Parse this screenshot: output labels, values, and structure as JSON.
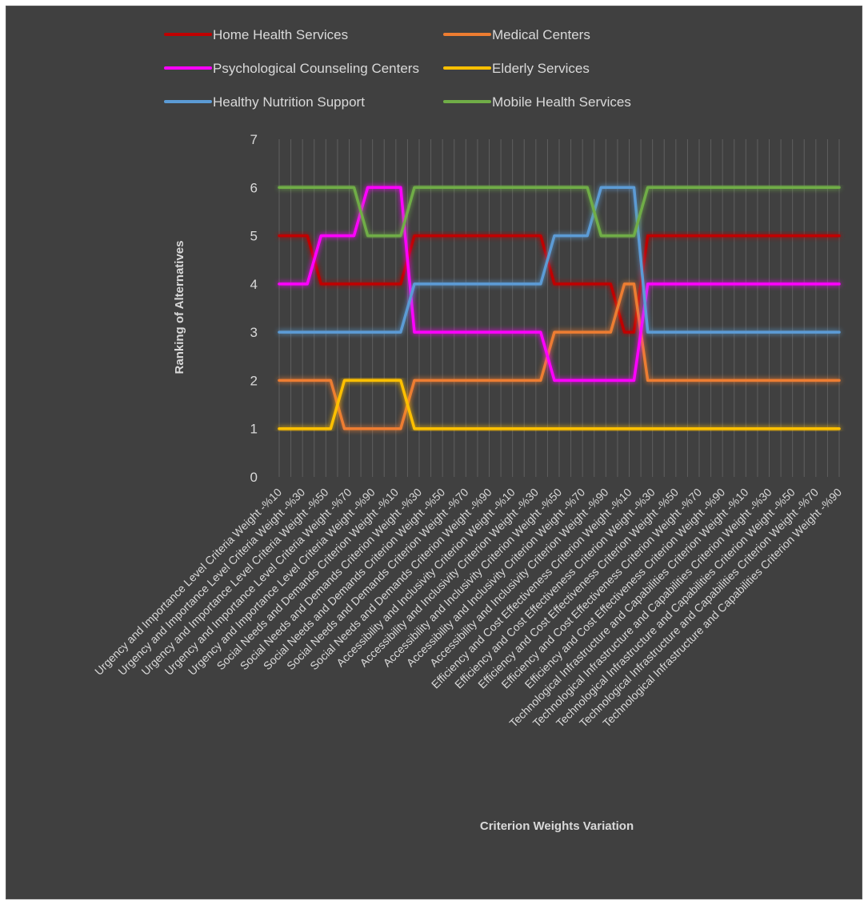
{
  "chart_data": {
    "type": "line",
    "title": "",
    "xlabel": "Criterion Weights Variation",
    "ylabel": "Ranking of Alternatives",
    "ylim": [
      0,
      7
    ],
    "yticks": [
      0,
      1,
      2,
      3,
      4,
      5,
      6,
      7
    ],
    "grid": "vertical",
    "legend": "top",
    "categories": [
      "Urgency and Importance Level Criteria Weight -%10",
      "Urgency and Importance Level Criteria Weight -%30",
      "Urgency and Importance Level Criteria Weight -%50",
      "Urgency and Importance Level Criteria Weight -%70",
      "Urgency and Importance Level Criteria Weight -%90",
      "Social Needs and Demands Criterion Weight -%10",
      "Social Needs and Demands Criterion Weight -%30",
      "Social Needs and Demands Criterion Weight -%50",
      "Social Needs and Demands Criterion Weight -%70",
      "Social Needs and Demands Criterion Weight -%90",
      "Accessibility and Inclusivity Criterion Weight -%10",
      "Accessibility and Inclusivity Criterion Weight -%30",
      "Accessibility and Inclusivity Criterion Weight -%50",
      "Accessibility and Inclusivity Criterion Weight -%70",
      "Accessibility and Inclusivity Criterion Weight -%90",
      "Efficiency and Cost Effectiveness Criterion Weight -%10",
      "Efficiency and Cost Effectiveness Criterion Weight -%30",
      "Efficiency and Cost Effectiveness Criterion Weight -%50",
      "Efficiency and Cost Effectiveness Criterion Weight -%70",
      "Efficiency and Cost Effectiveness Criterion Weight -%90",
      "Technological Infrastructure and Capabilities  Criterion Weight -%10",
      "Technological Infrastructure and Capabilities  Criterion Weight -%30",
      "Technological Infrastructure and Capabilities  Criterion Weight -%50",
      "Technological Infrastructure and Capabilities  Criterion Weight -%70",
      "Technological Infrastructure and Capabilities  Criterion Weight -%90"
    ],
    "series": [
      {
        "name": "Home Health Services",
        "color": "#c00000",
        "values": [
          5,
          5,
          4,
          4,
          4,
          4,
          5,
          5,
          5,
          5,
          5,
          5,
          4,
          4,
          4,
          3,
          5,
          5,
          5,
          5,
          5,
          5,
          5,
          5,
          5
        ]
      },
      {
        "name": "Medical Centers",
        "color": "#ed7d31",
        "values": [
          2,
          2,
          2,
          1,
          1,
          1,
          2,
          2,
          2,
          2,
          2,
          2,
          3,
          3,
          3,
          4,
          2,
          2,
          2,
          2,
          2,
          2,
          2,
          2,
          2
        ]
      },
      {
        "name": "Psychological Counseling Centers",
        "color": "#ff00ff",
        "values": [
          4,
          4,
          5,
          5,
          6,
          6,
          3,
          3,
          3,
          3,
          3,
          3,
          2,
          2,
          2,
          2,
          4,
          4,
          4,
          4,
          4,
          4,
          4,
          4,
          4
        ]
      },
      {
        "name": "Elderly Services",
        "color": "#ffc000",
        "values": [
          1,
          1,
          1,
          2,
          2,
          2,
          1,
          1,
          1,
          1,
          1,
          1,
          1,
          1,
          1,
          1,
          1,
          1,
          1,
          1,
          1,
          1,
          1,
          1,
          1
        ]
      },
      {
        "name": "Healthy Nutrition Support",
        "color": "#5b9bd5",
        "values": [
          3,
          3,
          3,
          3,
          3,
          3,
          4,
          4,
          4,
          4,
          4,
          4,
          5,
          5,
          6,
          6,
          3,
          3,
          3,
          3,
          3,
          3,
          3,
          3,
          3
        ]
      },
      {
        "name": "Mobile Health Services",
        "color": "#70ad47",
        "values": [
          6,
          6,
          6,
          6,
          5,
          5,
          6,
          6,
          6,
          6,
          6,
          6,
          6,
          6,
          5,
          5,
          6,
          6,
          6,
          6,
          6,
          6,
          6,
          6,
          6
        ]
      }
    ]
  }
}
